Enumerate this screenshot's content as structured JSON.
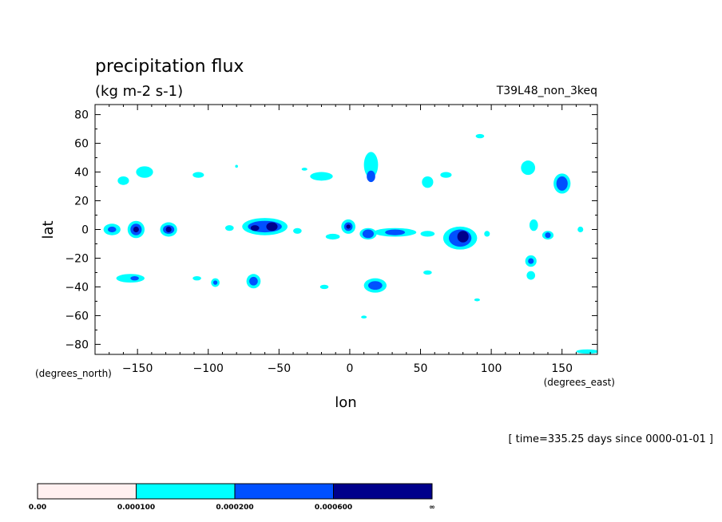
{
  "chart_data": {
    "type": "heatmap",
    "title": "precipitation flux",
    "units": "(kg m-2 s-1)",
    "dataset": "T39L48_non_3keq",
    "xlabel": "lon",
    "ylabel": "lat",
    "x_units": "(degrees_east)",
    "y_units": "(degrees_north)",
    "xlim": [
      -180,
      175
    ],
    "ylim": [
      -87,
      87
    ],
    "x_ticks": [
      -150,
      -100,
      -50,
      0,
      50,
      100,
      150
    ],
    "y_ticks": [
      80,
      60,
      40,
      20,
      0,
      -20,
      -40,
      -60,
      -80
    ],
    "time_label": "[ time=335.25 days since 0000-01-01 ]",
    "colorbar": {
      "labels": [
        "0.00",
        "0.000100",
        "0.000200",
        "0.000600",
        "∞"
      ],
      "colors": [
        "#fff0f0",
        "#00ffff",
        "#0050ff",
        "#00008b"
      ]
    },
    "cells": [
      {
        "lon": -168,
        "lat": 0,
        "rx": 6,
        "ry": 4,
        "level": 1
      },
      {
        "lon": -168,
        "lat": 0,
        "rx": 3,
        "ry": 2,
        "level": 2
      },
      {
        "lon": -151,
        "lat": 0,
        "rx": 6,
        "ry": 6,
        "level": 1
      },
      {
        "lon": -151,
        "lat": 0,
        "rx": 4,
        "ry": 4,
        "level": 2
      },
      {
        "lon": -151,
        "lat": 0,
        "rx": 2,
        "ry": 2,
        "level": 3
      },
      {
        "lon": -128,
        "lat": 0,
        "rx": 6,
        "ry": 5,
        "level": 1
      },
      {
        "lon": -128,
        "lat": 0,
        "rx": 4,
        "ry": 3,
        "level": 2
      },
      {
        "lon": -128,
        "lat": 0,
        "rx": 2,
        "ry": 2,
        "level": 3
      },
      {
        "lon": -85,
        "lat": 1,
        "rx": 3,
        "ry": 2,
        "level": 1
      },
      {
        "lon": -60,
        "lat": 2,
        "rx": 16,
        "ry": 6,
        "level": 1
      },
      {
        "lon": -60,
        "lat": 2,
        "rx": 12,
        "ry": 4,
        "level": 2
      },
      {
        "lon": -55,
        "lat": 2,
        "rx": 4,
        "ry": 3,
        "level": 3
      },
      {
        "lon": -67,
        "lat": 1,
        "rx": 3,
        "ry": 2,
        "level": 3
      },
      {
        "lon": -37,
        "lat": -1,
        "rx": 3,
        "ry": 2,
        "level": 1
      },
      {
        "lon": -12,
        "lat": -5,
        "rx": 5,
        "ry": 2,
        "level": 1
      },
      {
        "lon": -1,
        "lat": 2,
        "rx": 5,
        "ry": 5,
        "level": 1
      },
      {
        "lon": -1,
        "lat": 2,
        "rx": 3,
        "ry": 3,
        "level": 2
      },
      {
        "lon": -1,
        "lat": 2,
        "rx": 1.5,
        "ry": 1.5,
        "level": 3
      },
      {
        "lon": 13,
        "lat": -3,
        "rx": 6,
        "ry": 4,
        "level": 1
      },
      {
        "lon": 13,
        "lat": -3,
        "rx": 4,
        "ry": 3,
        "level": 2
      },
      {
        "lon": 32,
        "lat": -2,
        "rx": 15,
        "ry": 3,
        "level": 1
      },
      {
        "lon": 32,
        "lat": -2,
        "rx": 7,
        "ry": 2,
        "level": 2
      },
      {
        "lon": 55,
        "lat": -3,
        "rx": 5,
        "ry": 2,
        "level": 1
      },
      {
        "lon": 78,
        "lat": -6,
        "rx": 12,
        "ry": 8,
        "level": 1
      },
      {
        "lon": 78,
        "lat": -6,
        "rx": 8,
        "ry": 6,
        "level": 2
      },
      {
        "lon": 80,
        "lat": -5,
        "rx": 4,
        "ry": 4,
        "level": 3
      },
      {
        "lon": 97,
        "lat": -3,
        "rx": 2,
        "ry": 2,
        "level": 1
      },
      {
        "lon": 130,
        "lat": 3,
        "rx": 3,
        "ry": 4,
        "level": 1
      },
      {
        "lon": 140,
        "lat": -4,
        "rx": 4,
        "ry": 3,
        "level": 1
      },
      {
        "lon": 140,
        "lat": -4,
        "rx": 2,
        "ry": 2,
        "level": 2
      },
      {
        "lon": 163,
        "lat": 0,
        "rx": 2,
        "ry": 2,
        "level": 1
      },
      {
        "lon": 15,
        "lat": 45,
        "rx": 5,
        "ry": 9,
        "level": 1
      },
      {
        "lon": 15,
        "lat": 37,
        "rx": 3,
        "ry": 4,
        "level": 2
      },
      {
        "lon": 150,
        "lat": 32,
        "rx": 6,
        "ry": 7,
        "level": 1
      },
      {
        "lon": 150,
        "lat": 32,
        "rx": 4,
        "ry": 5,
        "level": 2
      },
      {
        "lon": 126,
        "lat": 43,
        "rx": 5,
        "ry": 5,
        "level": 1
      },
      {
        "lon": -160,
        "lat": 34,
        "rx": 4,
        "ry": 3,
        "level": 1
      },
      {
        "lon": -145,
        "lat": 40,
        "rx": 6,
        "ry": 4,
        "level": 1
      },
      {
        "lon": -107,
        "lat": 38,
        "rx": 4,
        "ry": 2,
        "level": 1
      },
      {
        "lon": -80,
        "lat": 44,
        "rx": 1,
        "ry": 1,
        "level": 1
      },
      {
        "lon": -32,
        "lat": 42,
        "rx": 2,
        "ry": 1,
        "level": 1
      },
      {
        "lon": -20,
        "lat": 37,
        "rx": 8,
        "ry": 3,
        "level": 1
      },
      {
        "lon": 55,
        "lat": 33,
        "rx": 4,
        "ry": 4,
        "level": 1
      },
      {
        "lon": 68,
        "lat": 38,
        "rx": 4,
        "ry": 2,
        "level": 1
      },
      {
        "lon": 92,
        "lat": 65,
        "rx": 3,
        "ry": 1.5,
        "level": 1
      },
      {
        "lon": -155,
        "lat": -34,
        "rx": 10,
        "ry": 3,
        "level": 1
      },
      {
        "lon": -152,
        "lat": -34,
        "rx": 3,
        "ry": 1.5,
        "level": 2
      },
      {
        "lon": -108,
        "lat": -34,
        "rx": 3,
        "ry": 1.5,
        "level": 1
      },
      {
        "lon": -95,
        "lat": -37,
        "rx": 3,
        "ry": 3,
        "level": 1
      },
      {
        "lon": -95,
        "lat": -37,
        "rx": 1.5,
        "ry": 1.5,
        "level": 2
      },
      {
        "lon": -68,
        "lat": -36,
        "rx": 5,
        "ry": 5,
        "level": 1
      },
      {
        "lon": -68,
        "lat": -36,
        "rx": 3,
        "ry": 3,
        "level": 2
      },
      {
        "lon": 18,
        "lat": -39,
        "rx": 8,
        "ry": 5,
        "level": 1
      },
      {
        "lon": 18,
        "lat": -39,
        "rx": 5,
        "ry": 3,
        "level": 2
      },
      {
        "lon": 55,
        "lat": -30,
        "rx": 3,
        "ry": 1.5,
        "level": 1
      },
      {
        "lon": 128,
        "lat": -22,
        "rx": 4,
        "ry": 4,
        "level": 1
      },
      {
        "lon": 128,
        "lat": -22,
        "rx": 2,
        "ry": 2,
        "level": 2
      },
      {
        "lon": 128,
        "lat": -32,
        "rx": 3,
        "ry": 3,
        "level": 1
      },
      {
        "lon": -18,
        "lat": -40,
        "rx": 3,
        "ry": 1.5,
        "level": 1
      },
      {
        "lon": 10,
        "lat": -61,
        "rx": 2,
        "ry": 1,
        "level": 1
      },
      {
        "lon": 90,
        "lat": -49,
        "rx": 2,
        "ry": 1,
        "level": 1
      },
      {
        "lon": 168,
        "lat": -85,
        "rx": 8,
        "ry": 1.5,
        "level": 1
      }
    ]
  }
}
